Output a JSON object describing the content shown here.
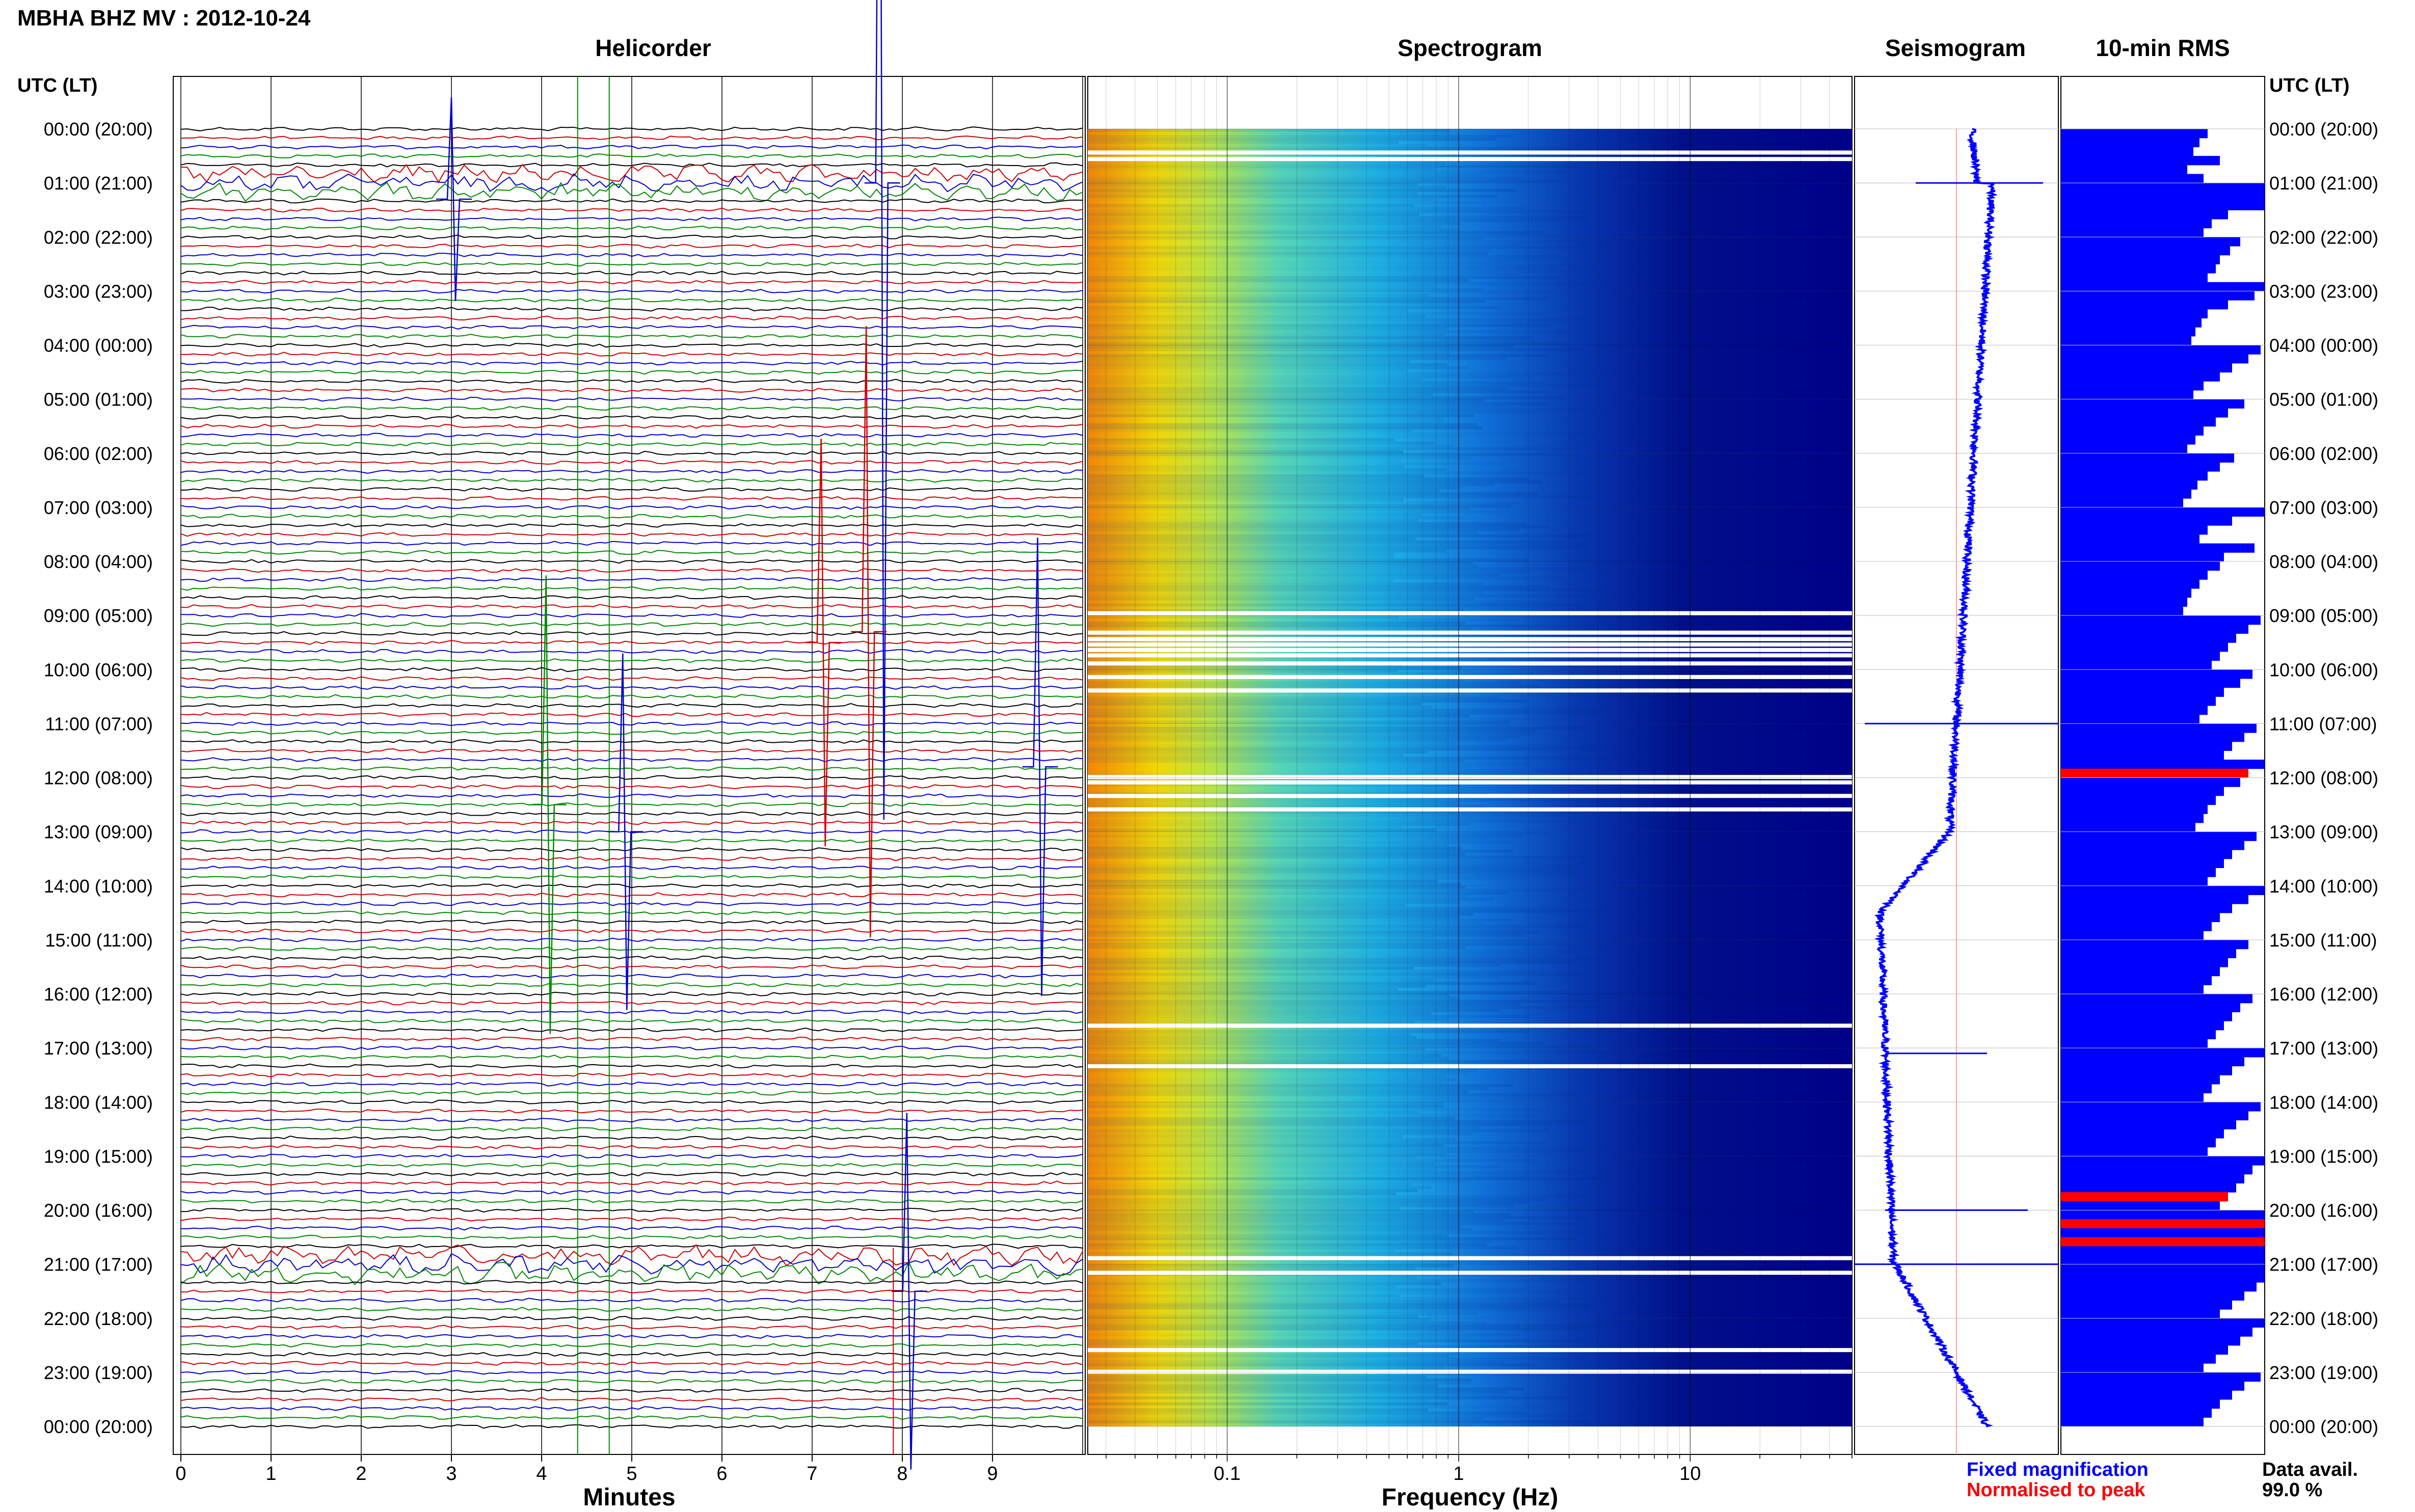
{
  "header": {
    "title": "MBHA BHZ MV : 2012-10-24"
  },
  "panels": {
    "helicorder": {
      "title": "Helicorder",
      "xlabel": "Minutes"
    },
    "spectrogram": {
      "title": "Spectrogram",
      "xlabel": "Frequency (Hz)"
    },
    "seismogram": {
      "title": "Seismogram"
    },
    "rms": {
      "title": "10-min RMS"
    }
  },
  "time_axis": {
    "left_header": "UTC (LT)",
    "right_header": "UTC (LT)"
  },
  "legend": {
    "fixed_magnification": "Fixed magnification",
    "normalised_to_peak": "Normalised to peak",
    "data_avail_label": "Data avail.",
    "data_avail_value": "99.0 %"
  },
  "colors": {
    "trace_colors": [
      "#000000",
      "#cc0000",
      "#0000cc",
      "#008800"
    ],
    "fixed_magnification": "#0000ff",
    "normalised_to_peak": "#ff0000",
    "spectrogram_low": "#00008b",
    "spectrogram_high": "#8b0000"
  },
  "chart_data": [
    {
      "type": "line",
      "panel": "helicorder",
      "title": "Helicorder",
      "xlabel": "Minutes",
      "xlim": [
        0,
        10
      ],
      "xticks": [
        "0",
        "1",
        "2",
        "3",
        "4",
        "5",
        "6",
        "7",
        "8",
        "9"
      ],
      "rows_per_hour": 6,
      "ylabels": [
        "00:00 (20:00)",
        "01:00 (21:00)",
        "02:00 (22:00)",
        "03:00 (23:00)",
        "04:00 (00:00)",
        "05:00 (01:00)",
        "06:00 (02:00)",
        "07:00 (03:00)",
        "08:00 (04:00)",
        "09:00 (05:00)",
        "10:00 (06:00)",
        "11:00 (07:00)",
        "12:00 (08:00)",
        "13:00 (09:00)",
        "14:00 (10:00)",
        "15:00 (11:00)",
        "16:00 (12:00)",
        "17:00 (13:00)",
        "18:00 (14:00)",
        "19:00 (15:00)",
        "20:00 (16:00)",
        "21:00 (17:00)",
        "22:00 (18:00)",
        "23:00 (19:00)",
        "00:00 (20:00)"
      ]
    },
    {
      "type": "heatmap",
      "panel": "spectrogram",
      "title": "Spectrogram",
      "xlabel": "Frequency (Hz)",
      "xscale": "log",
      "xlim": [
        0.025,
        50
      ],
      "xticks": [
        "0.1",
        "1",
        "10"
      ],
      "colormap": "jet"
    },
    {
      "type": "line",
      "panel": "seismogram",
      "title": "Seismogram",
      "description_series": "fixed magnification trace"
    },
    {
      "type": "bar",
      "panel": "rms",
      "title": "10-min RMS",
      "orientation": "horizontal",
      "units": "relative",
      "values": [
        0.72,
        0.68,
        0.65,
        0.78,
        0.62,
        0.7,
        1.0,
        1.0,
        1.0,
        0.82,
        0.74,
        0.7,
        0.88,
        0.83,
        0.78,
        0.76,
        0.72,
        1.0,
        0.95,
        0.82,
        0.72,
        0.69,
        0.66,
        0.64,
        0.98,
        0.92,
        0.84,
        0.78,
        0.7,
        0.65,
        0.9,
        0.82,
        0.76,
        0.7,
        0.66,
        0.62,
        0.85,
        0.78,
        0.72,
        0.67,
        0.64,
        0.6,
        1.0,
        0.84,
        0.72,
        0.68,
        0.95,
        0.8,
        0.78,
        0.72,
        0.68,
        0.64,
        0.62,
        0.6,
        0.98,
        0.92,
        0.86,
        0.82,
        0.78,
        0.74,
        0.94,
        0.88,
        0.8,
        0.76,
        0.72,
        0.68,
        0.96,
        0.9,
        0.84,
        0.8,
        1.0,
        0.92,
        0.88,
        0.8,
        0.76,
        0.72,
        0.7,
        0.66,
        0.96,
        0.9,
        0.84,
        0.8,
        0.76,
        0.72,
        1.0,
        0.92,
        0.84,
        0.78,
        0.74,
        0.7,
        0.92,
        0.86,
        0.82,
        0.78,
        0.74,
        0.7,
        0.94,
        0.88,
        0.84,
        0.8,
        0.76,
        0.72,
        1.0,
        0.9,
        0.84,
        0.78,
        0.74,
        0.7,
        0.98,
        0.92,
        0.86,
        0.8,
        0.76,
        0.72,
        1.0,
        0.94,
        0.9,
        0.86,
        0.82,
        0.78,
        1.0,
        1.0,
        1.0,
        1.0,
        1.0,
        1.0,
        1.0,
        1.0,
        0.96,
        0.9,
        0.84,
        0.78,
        1.0,
        0.94,
        0.88,
        0.82,
        0.76,
        0.7,
        0.98,
        0.9,
        0.84,
        0.78,
        0.74,
        0.7
      ],
      "highlighted_normalised_rows": [
        71,
        118,
        121,
        123
      ]
    }
  ]
}
